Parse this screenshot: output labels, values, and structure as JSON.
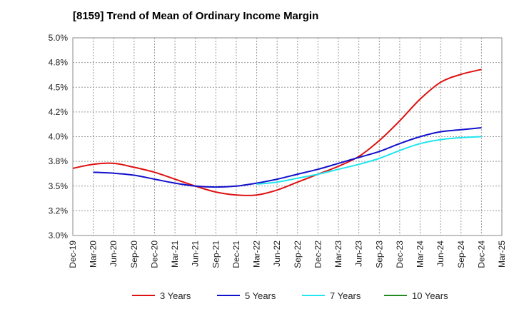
{
  "chart_data": {
    "type": "line",
    "title": "[8159]  Trend of Mean of Ordinary Income Margin",
    "xlabel": "",
    "ylabel": "",
    "categories": [
      "Dec-19",
      "Mar-20",
      "Jun-20",
      "Sep-20",
      "Dec-20",
      "Mar-21",
      "Jun-21",
      "Sep-21",
      "Dec-21",
      "Mar-22",
      "Jun-22",
      "Sep-22",
      "Dec-22",
      "Mar-23",
      "Jun-23",
      "Sep-23",
      "Dec-23",
      "Mar-24",
      "Jun-24",
      "Sep-24",
      "Dec-24",
      "Mar-25"
    ],
    "y_ticks": [
      {
        "value": 3.0,
        "label": "3.0%"
      },
      {
        "value": 3.25,
        "label": "3.2%"
      },
      {
        "value": 3.5,
        "label": "3.5%"
      },
      {
        "value": 3.75,
        "label": "3.8%"
      },
      {
        "value": 4.0,
        "label": "4.0%"
      },
      {
        "value": 4.25,
        "label": "4.2%"
      },
      {
        "value": 4.5,
        "label": "4.5%"
      },
      {
        "value": 4.75,
        "label": "4.8%"
      },
      {
        "value": 5.0,
        "label": "5.0%"
      }
    ],
    "ylim": [
      3.0,
      5.0
    ],
    "grid": true,
    "legend_position": "bottom",
    "series": [
      {
        "name": "3 Years",
        "color": "#dd1111",
        "values": [
          3.68,
          3.72,
          3.73,
          3.69,
          3.64,
          3.57,
          3.5,
          3.44,
          3.41,
          3.41,
          3.46,
          3.54,
          3.62,
          3.7,
          3.8,
          3.96,
          4.16,
          4.38,
          4.55,
          4.63,
          4.68,
          null
        ]
      },
      {
        "name": "5 Years",
        "color": "#1111cc",
        "values": [
          null,
          3.64,
          3.63,
          3.61,
          3.57,
          3.53,
          3.5,
          3.49,
          3.5,
          3.53,
          3.57,
          3.62,
          3.67,
          3.73,
          3.79,
          3.85,
          3.93,
          4.0,
          4.05,
          4.07,
          4.09,
          null
        ]
      },
      {
        "name": "7 Years",
        "color": "#22e5ee",
        "values": [
          null,
          null,
          null,
          null,
          null,
          null,
          null,
          null,
          null,
          3.52,
          3.54,
          3.58,
          3.62,
          3.67,
          3.72,
          3.78,
          3.86,
          3.93,
          3.97,
          3.99,
          4.0,
          null
        ]
      },
      {
        "name": "10 Years",
        "color": "#228822",
        "values": [
          null,
          null,
          null,
          null,
          null,
          null,
          null,
          null,
          null,
          null,
          null,
          null,
          null,
          null,
          null,
          null,
          null,
          null,
          null,
          null,
          null,
          null
        ]
      }
    ]
  }
}
